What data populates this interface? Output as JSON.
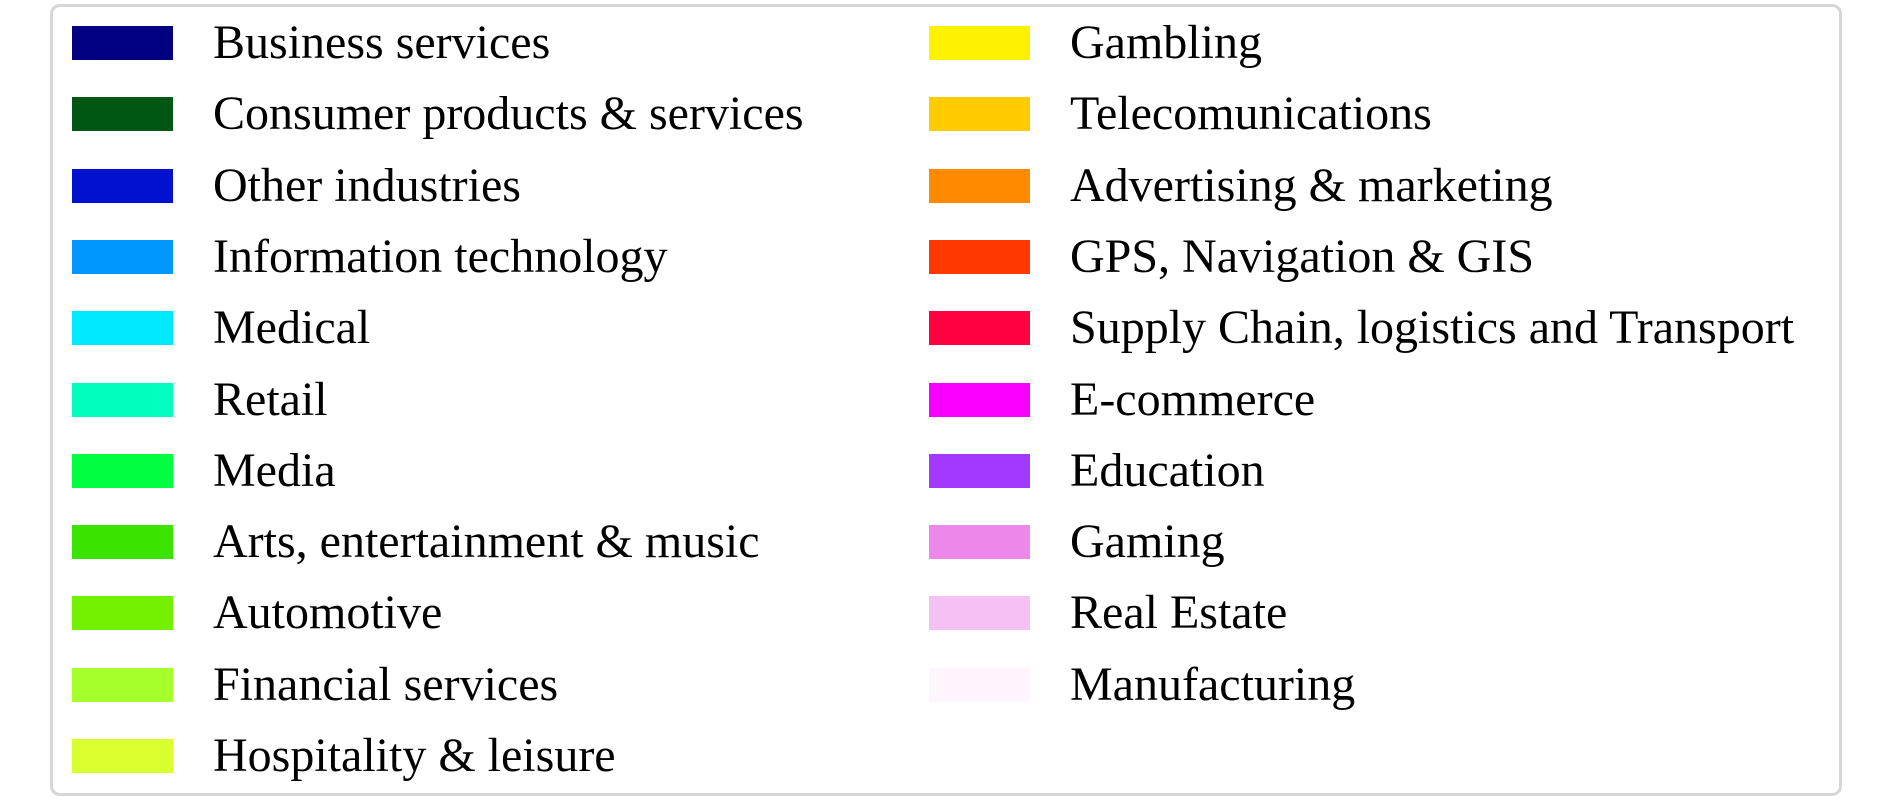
{
  "chart_data": {
    "type": "legend",
    "columns": [
      {
        "entries": [
          {
            "label": "Business services",
            "color": "#000080"
          },
          {
            "label": "Consumer products & services",
            "color": "#005713"
          },
          {
            "label": "Other industries",
            "color": "#0012d0"
          },
          {
            "label": "Information technology",
            "color": "#0098ff"
          },
          {
            "label": "Medical",
            "color": "#00eaff"
          },
          {
            "label": "Retail",
            "color": "#00ffbe"
          },
          {
            "label": "Media",
            "color": "#00ff41"
          },
          {
            "label": "Arts, entertainment & music",
            "color": "#3be300"
          },
          {
            "label": "Automotive",
            "color": "#73ef00"
          },
          {
            "label": "Financial services",
            "color": "#a4ff2b"
          },
          {
            "label": "Hospitality & leisure",
            "color": "#d9ff2e"
          }
        ]
      },
      {
        "entries": [
          {
            "label": "Gambling",
            "color": "#fff200"
          },
          {
            "label": "Telecomunications",
            "color": "#ffcc00"
          },
          {
            "label": "Advertising & marketing",
            "color": "#ff8a00"
          },
          {
            "label": "GPS, Navigation & GIS",
            "color": "#ff3800"
          },
          {
            "label": "Supply Chain, logistics and Transport",
            "color": "#ff0040"
          },
          {
            "label": "E-commerce",
            "color": "#f700ff"
          },
          {
            "label": "Education",
            "color": "#a338ff"
          },
          {
            "label": "Gaming",
            "color": "#eb88ea"
          },
          {
            "label": "Real Estate",
            "color": "#f5c1f5"
          },
          {
            "label": "Manufacturing",
            "color": "#fff5ff"
          }
        ]
      }
    ],
    "border_color": "#d6d6d6"
  }
}
